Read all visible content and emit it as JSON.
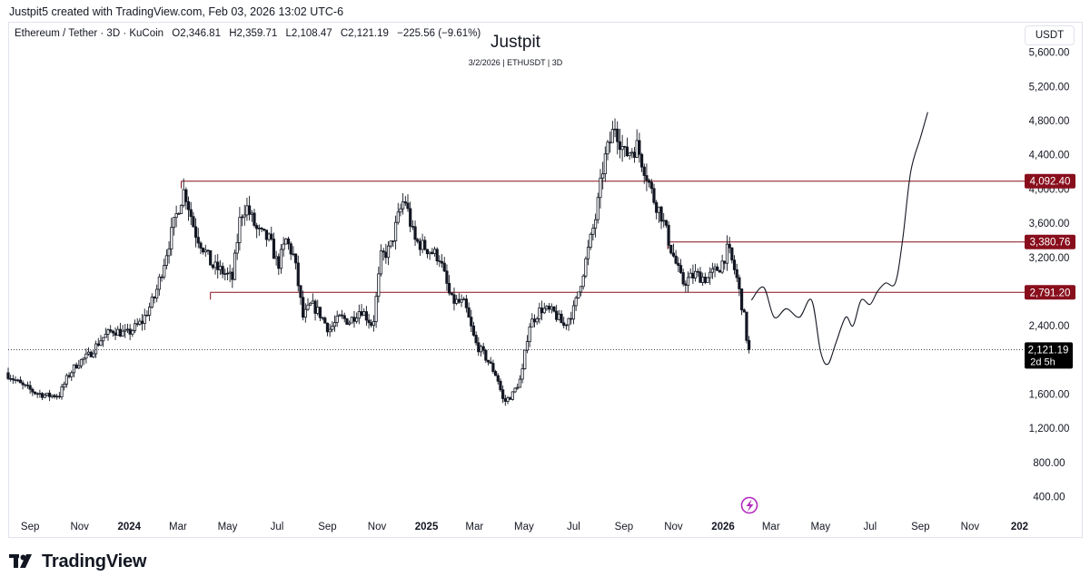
{
  "header": {
    "credit": "Justpit5 created with TradingView.com, Feb 03, 2026 13:02 UTC-6"
  },
  "legend": {
    "symbol": "Ethereum / Tether · 3D · KuCoin",
    "open": "O2,346.81",
    "high": "H2,359.71",
    "low": "L2,108.47",
    "close": "C2,121.19",
    "change": "−225.56 (−9.61%)"
  },
  "author": {
    "name": "Justpit",
    "subtitle": "3/2/2026 | ETHUSDT | 3D"
  },
  "currency_label": "USDT",
  "footer": {
    "brand": "TradingView"
  },
  "colors": {
    "candle": "#131722",
    "level_line": "#880e1c",
    "level_badge": "#880e1c",
    "price_badge": "#000000",
    "axis_text": "#131722",
    "grid": "#e0e3eb"
  },
  "chart_data": {
    "type": "line",
    "title": "",
    "xlabel": "",
    "ylabel": "",
    "ylim": [
      200,
      5800
    ],
    "xlim": [
      "2023-08-05",
      "2027-01-05"
    ],
    "grid": false,
    "legend": "none",
    "y_ticks": [
      "5,600.00",
      "5,200.00",
      "4,800.00",
      "4,400.00",
      "4,000.00",
      "3,600.00",
      "3,200.00",
      "2,800.00",
      "2,400.00",
      "1,600.00",
      "1,200.00",
      "800.00",
      "400.00"
    ],
    "x_ticks": [
      {
        "label": "Sep",
        "date": "2023-09-01",
        "bold": false
      },
      {
        "label": "Nov",
        "date": "2023-11-01",
        "bold": false
      },
      {
        "label": "2024",
        "date": "2024-01-01",
        "bold": true
      },
      {
        "label": "Mar",
        "date": "2024-03-01",
        "bold": false
      },
      {
        "label": "May",
        "date": "2024-05-01",
        "bold": false
      },
      {
        "label": "Jul",
        "date": "2024-07-01",
        "bold": false
      },
      {
        "label": "Sep",
        "date": "2024-09-01",
        "bold": false
      },
      {
        "label": "Nov",
        "date": "2024-11-01",
        "bold": false
      },
      {
        "label": "2025",
        "date": "2025-01-01",
        "bold": true
      },
      {
        "label": "Mar",
        "date": "2025-03-01",
        "bold": false
      },
      {
        "label": "May",
        "date": "2025-05-01",
        "bold": false
      },
      {
        "label": "Jul",
        "date": "2025-07-01",
        "bold": false
      },
      {
        "label": "Sep",
        "date": "2025-09-01",
        "bold": false
      },
      {
        "label": "Nov",
        "date": "2025-11-01",
        "bold": false
      },
      {
        "label": "2026",
        "date": "2026-01-01",
        "bold": true
      },
      {
        "label": "Mar",
        "date": "2026-03-01",
        "bold": false
      },
      {
        "label": "May",
        "date": "2026-05-01",
        "bold": false
      },
      {
        "label": "Jul",
        "date": "2026-07-01",
        "bold": false
      },
      {
        "label": "Sep",
        "date": "2026-09-01",
        "bold": false
      },
      {
        "label": "Nov",
        "date": "2026-11-01",
        "bold": false
      },
      {
        "label": "202",
        "date": "2027-01-01",
        "bold": true
      }
    ],
    "series": [
      {
        "kind": "price",
        "x": [
          "2023-08-05",
          "2023-08-25",
          "2023-09-10",
          "2023-09-25",
          "2023-10-10",
          "2023-10-20",
          "2023-11-01",
          "2023-11-15",
          "2023-12-01",
          "2023-12-15",
          "2024-01-01",
          "2024-01-20",
          "2024-02-05",
          "2024-02-20",
          "2024-03-05",
          "2024-03-12",
          "2024-03-25",
          "2024-04-05",
          "2024-04-15",
          "2024-04-25",
          "2024-05-10",
          "2024-05-20",
          "2024-05-27",
          "2024-06-10",
          "2024-06-25",
          "2024-07-05",
          "2024-07-15",
          "2024-07-25",
          "2024-08-05",
          "2024-08-15",
          "2024-08-25",
          "2024-09-06",
          "2024-09-20",
          "2024-10-01",
          "2024-10-15",
          "2024-10-30",
          "2024-11-09",
          "2024-11-20",
          "2024-12-01",
          "2024-12-08",
          "2024-12-20",
          "2025-01-05",
          "2025-01-20",
          "2025-02-03",
          "2025-02-20",
          "2025-03-05",
          "2025-03-20",
          "2025-04-01",
          "2025-04-09",
          "2025-04-20",
          "2025-05-01",
          "2025-05-10",
          "2025-05-25",
          "2025-06-10",
          "2025-06-22",
          "2025-07-05",
          "2025-07-20",
          "2025-08-01",
          "2025-08-10",
          "2025-08-24",
          "2025-09-05",
          "2025-09-20",
          "2025-10-01",
          "2025-10-10",
          "2025-10-20",
          "2025-11-01",
          "2025-11-15",
          "2025-12-01",
          "2025-12-15",
          "2026-01-01",
          "2026-01-10",
          "2026-01-20",
          "2026-02-01",
          "2026-02-03"
        ],
        "values": [
          1850,
          1700,
          1620,
          1580,
          1590,
          1800,
          1960,
          2050,
          2250,
          2350,
          2300,
          2450,
          2750,
          3300,
          3800,
          4000,
          3500,
          3300,
          3100,
          3050,
          2950,
          3700,
          3800,
          3500,
          3400,
          3100,
          3400,
          3200,
          2500,
          2650,
          2550,
          2350,
          2500,
          2450,
          2600,
          2400,
          3200,
          3300,
          3700,
          3900,
          3400,
          3300,
          3200,
          2700,
          2650,
          2200,
          2000,
          1800,
          1500,
          1600,
          1800,
          2400,
          2600,
          2550,
          2400,
          2600,
          3200,
          3700,
          4300,
          4750,
          4400,
          4500,
          4200,
          3900,
          3700,
          3300,
          2900,
          3000,
          2950,
          3100,
          3300,
          3000,
          2400,
          2121.19
        ]
      },
      {
        "kind": "projection",
        "x": [
          "2026-02-05",
          "2026-02-20",
          "2026-03-05",
          "2026-03-20",
          "2026-04-05",
          "2026-04-20",
          "2026-05-01",
          "2026-05-10",
          "2026-05-20",
          "2026-06-01",
          "2026-06-10",
          "2026-06-20",
          "2026-07-01",
          "2026-07-10",
          "2026-07-20",
          "2026-08-01",
          "2026-08-10",
          "2026-08-20",
          "2026-09-01",
          "2026-09-10"
        ],
        "values": [
          2700,
          2850,
          2500,
          2600,
          2500,
          2700,
          2100,
          1950,
          2200,
          2500,
          2400,
          2700,
          2650,
          2800,
          2900,
          2900,
          3400,
          4200,
          4600,
          4900
        ]
      }
    ],
    "levels": [
      {
        "value": 4092.4,
        "label": "4,092.40",
        "from": "2024-03-05"
      },
      {
        "value": 3380.76,
        "label": "3,380.76",
        "from": "2025-10-25"
      },
      {
        "value": 2791.2,
        "label": "2,791.20",
        "from": "2024-04-10"
      }
    ],
    "current_price": {
      "value": 2121.19,
      "label": "2,121.19",
      "countdown": "2d 5h"
    }
  }
}
